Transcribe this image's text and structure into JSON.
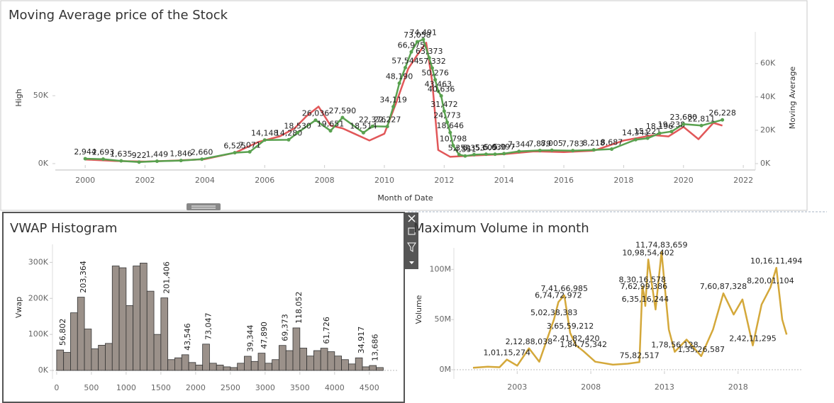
{
  "chart_data": [
    {
      "type": "line",
      "title": "Moving Average price of the Stock",
      "x_label": "Month of Date",
      "xlim": [
        1999,
        2022.4
      ],
      "xticks": [
        2000,
        2002,
        2004,
        2006,
        2008,
        2010,
        2012,
        2014,
        2016,
        2018,
        2020,
        2022
      ],
      "ylim": [
        0,
        97000
      ],
      "yticks": [
        {
          "value": 0,
          "label": "0K"
        },
        {
          "value": 50000,
          "label": "50K"
        }
      ],
      "y2lim": [
        0,
        79000
      ],
      "y2ticks": [
        {
          "value": 0,
          "label": "0K"
        },
        {
          "value": 20000,
          "label": "20K"
        },
        {
          "value": 40000,
          "label": "40K"
        },
        {
          "value": 60000,
          "label": "60K"
        }
      ],
      "series": [
        {
          "name": "High",
          "color": "#e15759",
          "axis": "y",
          "x": [
            2000,
            2001,
            2002,
            2003,
            2004,
            2005,
            2005.8,
            2006.5,
            2007,
            2007.4,
            2007.8,
            2008.2,
            2008.6,
            2009,
            2009.5,
            2010,
            2010.4,
            2010.8,
            2011.1,
            2011.4,
            2011.6,
            2011.8,
            2012.2,
            2013,
            2014,
            2015,
            2016,
            2017,
            2018,
            2019,
            2019.5,
            2020,
            2020.5,
            2021,
            2021.3
          ],
          "values": [
            3000,
            2000,
            1500,
            2200,
            3300,
            8000,
            16000,
            20000,
            26000,
            35000,
            42000,
            28000,
            26000,
            22000,
            17000,
            22000,
            45000,
            70000,
            80000,
            89000,
            60000,
            10000,
            5000,
            6000,
            7000,
            9000,
            8500,
            9500,
            17000,
            21000,
            20000,
            27000,
            18000,
            30000,
            28000
          ]
        },
        {
          "name": "Moving Average",
          "color": "#59a14f",
          "axis": "y2",
          "x": [
            2000,
            2000.6,
            2001.2,
            2001.8,
            2002.4,
            2003.2,
            2003.9,
            2005,
            2005.5,
            2006,
            2006.8,
            2007.1,
            2007.7,
            2008.2,
            2008.6,
            2009.3,
            2009.6,
            2010.1,
            2010.3,
            2010.5,
            2010.7,
            2010.9,
            2011.1,
            2011.3,
            2011.5,
            2011.6,
            2011.7,
            2011.8,
            2011.9,
            2012,
            2012.1,
            2012.2,
            2012.3,
            2012.5,
            2012.7,
            2013,
            2013.4,
            2013.7,
            2014,
            2014.5,
            2015.2,
            2015.6,
            2016.3,
            2017,
            2017.6,
            2018.4,
            2018.8,
            2019.2,
            2019.6,
            2020,
            2020.6,
            2021.3
          ],
          "values": [
            2944,
            2693,
            1635,
            922,
            1449,
            1846,
            2660,
            6525,
            7071,
            14148,
            14280,
            18530,
            26036,
            19651,
            27590,
            18514,
            22376,
            22227,
            34119,
            48190,
            57544,
            66975,
            73058,
            74491,
            63373,
            57332,
            50276,
            43463,
            40636,
            31472,
            24773,
            18646,
            10798,
            5350,
            4551,
            5353,
            5609,
            5630,
            5997,
            7344,
            7879,
            8005,
            7783,
            8218,
            8687,
            14341,
            15221,
            18196,
            19238,
            23680,
            22811,
            26228
          ],
          "value_labels": [
            "2,944",
            "2,693",
            "1,635",
            "922",
            "1,449",
            "1,846",
            "2,660",
            "6,525",
            "7,071",
            "14,148",
            "14,280",
            "18,530",
            "26,036",
            "19,651",
            "27,590",
            "18,514",
            "22,376",
            "22,227",
            "34,119",
            "48,190",
            "57,544",
            "66,975",
            "73,058",
            "74,491",
            "63,373",
            "57,332",
            "50,276",
            "43,463",
            "40,636",
            "31,472",
            "24,773",
            "18,646",
            "10,798",
            "5,350",
            "4,551",
            "5,353",
            "5,609",
            "5,630",
            "5,997",
            "7,344",
            "7,879",
            "8,005",
            "7,783",
            "8,218",
            "8,687",
            "14,341",
            "15,221",
            "18,196",
            "19,238",
            "23,680",
            "22,811",
            "26,228"
          ]
        }
      ]
    },
    {
      "type": "histogram",
      "title": "VWAP Histogram",
      "y_label": "Vwap",
      "color": "#9b918a",
      "xlim": [
        -60,
        4900
      ],
      "xticks": [
        0,
        500,
        1000,
        1500,
        2000,
        2500,
        3000,
        3500,
        4000,
        4500
      ],
      "ylim": [
        0,
        350000
      ],
      "yticks": [
        {
          "value": 0,
          "label": "0K"
        },
        {
          "value": 100000,
          "label": "100K"
        },
        {
          "value": 200000,
          "label": "200K"
        },
        {
          "value": 300000,
          "label": "300K"
        }
      ],
      "bins": [
        0,
        100,
        200,
        300,
        400,
        500,
        600,
        700,
        800,
        900,
        1000,
        1100,
        1200,
        1300,
        1400,
        1500,
        1600,
        1700,
        1800,
        1900,
        2000,
        2100,
        2200,
        2300,
        2400,
        2500,
        2600,
        2700,
        2800,
        2900,
        3000,
        3100,
        3200,
        3300,
        3400,
        3500,
        3600,
        3700,
        3800,
        3900,
        4000,
        4100,
        4200,
        4300,
        4400,
        4500,
        4600,
        4700
      ],
      "values": [
        56802,
        50000,
        160000,
        203364,
        115000,
        60000,
        70000,
        75000,
        290000,
        285000,
        180000,
        290000,
        298000,
        220000,
        100000,
        201406,
        30000,
        35000,
        43546,
        22000,
        15000,
        73047,
        20000,
        15000,
        10000,
        8000,
        20000,
        39344,
        25000,
        47890,
        20000,
        30000,
        69373,
        55000,
        118052,
        62000,
        40000,
        55000,
        61726,
        52000,
        40000,
        30000,
        18000,
        34917,
        10000,
        13686,
        8000
      ],
      "value_labels": [
        "56,802",
        null,
        null,
        "203,364",
        null,
        null,
        null,
        null,
        null,
        null,
        null,
        null,
        null,
        null,
        null,
        "201,406",
        null,
        null,
        "43,546",
        null,
        null,
        "73,047",
        null,
        null,
        null,
        null,
        null,
        "39,344",
        null,
        "47,890",
        null,
        null,
        "69,373",
        null,
        "118,052",
        null,
        null,
        null,
        "61,726",
        null,
        null,
        null,
        null,
        "34,917",
        null,
        "13,686",
        null
      ]
    },
    {
      "type": "line",
      "title": "Maximum Volume in month",
      "y_label": "Volume",
      "xlim": [
        1998.7,
        2022.3
      ],
      "xticks": [
        2003,
        2008,
        2013,
        2018
      ],
      "ylim": [
        0,
        120000000
      ],
      "yticks": [
        {
          "value": 0,
          "label": "0M"
        },
        {
          "value": 50000000,
          "label": "50M"
        },
        {
          "value": 100000000,
          "label": "100M"
        }
      ],
      "series": [
        {
          "color": "#d4a83a",
          "axis": "y",
          "x": [
            2000,
            2001,
            2001.8,
            2002.3,
            2003,
            2003.8,
            2004.5,
            2005.5,
            2005.8,
            2006.2,
            2006.6,
            2007,
            2007.5,
            2008.3,
            2009.5,
            2010.5,
            2011.3,
            2011.5,
            2011.6,
            2011.7,
            2011.9,
            2012.4,
            2012.8,
            2013.3,
            2013.7,
            2014.5,
            2015.5,
            2016.3,
            2017,
            2017.7,
            2018.3,
            2019,
            2019.6,
            2020.2,
            2020.6,
            2021,
            2021.3
          ],
          "values": [
            2000000,
            3000000,
            2500000,
            10115274,
            4000000,
            21288038,
            8000000,
            50238383,
            67472972,
            74166985,
            36559212,
            24182420,
            18475342,
            8000000,
            5000000,
            6000000,
            7582517,
            83016578,
            76299386,
            63516244,
            109854402,
            60000000,
            117483659,
            40000000,
            17856128,
            30000000,
            13526587,
            40000000,
            76087328,
            55000000,
            70000000,
            24211295,
            65000000,
            82001104,
            101611494,
            50000000,
            35000000
          ],
          "value_labels": [
            null,
            null,
            null,
            "1,01,15,274",
            null,
            "2,12,88,038",
            null,
            "5,02,38,383",
            "6,74,72,972",
            "7,41,66,985",
            "3,65,59,212",
            "2,41,82,420",
            "1,84,75,342",
            null,
            null,
            null,
            "75,82,517",
            "8,30,16,578",
            "7,62,99,386",
            "6,35,16,244",
            "10,98,54,402",
            null,
            "11,74,83,659",
            null,
            "1,78,56,128",
            null,
            "1,35,26,587",
            null,
            "7,60,87,328",
            null,
            null,
            "2,42,11,295",
            null,
            "8,20,01,104",
            "10,16,11,494",
            null,
            null
          ]
        }
      ]
    }
  ]
}
